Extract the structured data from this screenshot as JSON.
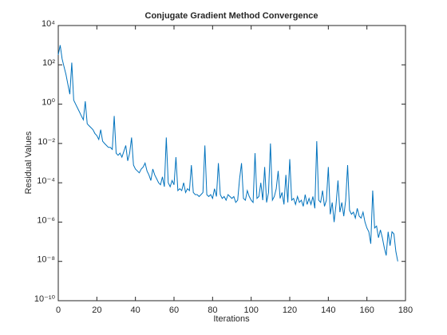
{
  "chart_data": {
    "type": "line",
    "title": "Conjugate Gradient Method Convergence",
    "xlabel": "Iterations",
    "ylabel": "Residual Values",
    "color": "#0072bd",
    "log_y": true,
    "grid": false,
    "xlim": [
      0,
      180
    ],
    "xticks": [
      0,
      20,
      40,
      60,
      80,
      100,
      120,
      140,
      160,
      180
    ],
    "ylim": [
      1e-10,
      10000
    ],
    "yticks": [
      {
        "value": 1e-10,
        "label": "10⁻¹⁰"
      },
      {
        "value": 1e-08,
        "label": "10⁻⁸"
      },
      {
        "value": 1e-06,
        "label": "10⁻⁶"
      },
      {
        "value": 0.0001,
        "label": "10⁻⁴"
      },
      {
        "value": 0.01,
        "label": "10⁻²"
      },
      {
        "value": 1,
        "label": "10⁰"
      },
      {
        "value": 100,
        "label": "10²"
      },
      {
        "value": 10000,
        "label": "10⁴"
      }
    ],
    "x": [
      0,
      1,
      2,
      3,
      4,
      5,
      6,
      7,
      8,
      9,
      10,
      11,
      12,
      13,
      14,
      15,
      16,
      17,
      18,
      19,
      20,
      21,
      22,
      23,
      24,
      25,
      26,
      27,
      28,
      29,
      30,
      31,
      32,
      33,
      34,
      35,
      36,
      37,
      38,
      39,
      40,
      41,
      42,
      43,
      44,
      45,
      46,
      47,
      48,
      49,
      50,
      51,
      52,
      53,
      54,
      55,
      56,
      57,
      58,
      59,
      60,
      61,
      62,
      63,
      64,
      65,
      66,
      67,
      68,
      69,
      70,
      71,
      72,
      73,
      74,
      75,
      76,
      77,
      78,
      79,
      80,
      81,
      82,
      83,
      84,
      85,
      86,
      87,
      88,
      89,
      90,
      91,
      92,
      93,
      94,
      95,
      96,
      97,
      98,
      99,
      100,
      101,
      102,
      103,
      104,
      105,
      106,
      107,
      108,
      109,
      110,
      111,
      112,
      113,
      114,
      115,
      116,
      117,
      118,
      119,
      120,
      121,
      122,
      123,
      124,
      125,
      126,
      127,
      128,
      129,
      130,
      131,
      132,
      133,
      134,
      135,
      136,
      137,
      138,
      139,
      140,
      141,
      142,
      143,
      144,
      145,
      146,
      147,
      148,
      149,
      150,
      151,
      152,
      153,
      154,
      155,
      156,
      157,
      158,
      159,
      160,
      161,
      162,
      163,
      164,
      165,
      166,
      167,
      168,
      169,
      170,
      171,
      172,
      173,
      174,
      175,
      176
    ],
    "values": [
      320,
      1000,
      200,
      79,
      32,
      10,
      3.2,
      130,
      1.6,
      1,
      0.63,
      0.4,
      0.25,
      0.16,
      1.4,
      0.1,
      0.079,
      0.063,
      0.05,
      0.032,
      0.025,
      0.016,
      0.05,
      0.013,
      0.01,
      0.0079,
      0.0063,
      0.0063,
      0.005,
      0.25,
      0.0032,
      0.0025,
      0.0032,
      0.002,
      0.004,
      0.0079,
      0.0013,
      0.0032,
      0.02,
      0.00079,
      0.0005,
      0.0004,
      0.00032,
      0.0005,
      0.00063,
      0.001,
      0.0004,
      0.00025,
      0.00013,
      0.0005,
      0.00025,
      0.00016,
      0.0001,
      7.9e-05,
      0.0002,
      6.3e-05,
      0.02,
      0.0001,
      6.3e-05,
      0.00013,
      7.9e-05,
      0.002,
      4e-05,
      5e-05,
      4e-05,
      0.0001,
      3.2e-05,
      5e-05,
      4e-05,
      0.00079,
      3.2e-05,
      2.5e-05,
      2.5e-05,
      2e-05,
      2.5e-05,
      3.2e-05,
      0.0079,
      2.5e-05,
      2e-05,
      2.5e-05,
      1.6e-05,
      5e-05,
      2e-05,
      0.001,
      2.5e-05,
      1.6e-05,
      2e-05,
      1.3e-05,
      2.5e-05,
      2e-05,
      1.6e-05,
      2e-05,
      1e-05,
      1.3e-05,
      0.00016,
      0.001,
      1.6e-05,
      1.3e-05,
      4e-05,
      2e-05,
      1.3e-05,
      1e-05,
      0.0032,
      1.6e-05,
      2e-05,
      0.0001,
      1.3e-05,
      0.00063,
      1e-05,
      3.2e-05,
      0.01,
      1.3e-05,
      2e-05,
      5e-05,
      0.0004,
      1.6e-05,
      3.2e-05,
      7.9e-06,
      0.00025,
      1e-05,
      0.0016,
      1.3e-05,
      1.6e-05,
      7.9e-06,
      2e-05,
      1e-05,
      1.3e-05,
      6.3e-06,
      2.5e-05,
      7.9e-06,
      1.6e-05,
      7.9e-06,
      2e-05,
      5e-06,
      0.013,
      1.3e-05,
      1e-05,
      4e-05,
      6.3e-06,
      1.3e-05,
      0.00063,
      2.5e-06,
      1e-05,
      1e-06,
      7.9e-06,
      0.00013,
      3.2e-06,
      1e-05,
      2e-06,
      1.3e-05,
      0.00079,
      4e-06,
      2.5e-06,
      3.2e-06,
      1.6e-06,
      5e-06,
      2e-06,
      1.6e-06,
      3.2e-06,
      1e-06,
      5e-07,
      3.2e-07,
      7.9e-08,
      4e-05,
      5e-07,
      6.3e-07,
      1.6e-07,
      4e-07,
      1.6e-07,
      5e-08,
      2e-08,
      3.2e-07,
      6.3e-08,
      3.2e-07,
      2.5e-07,
      3.2e-08,
      1e-08
    ]
  }
}
